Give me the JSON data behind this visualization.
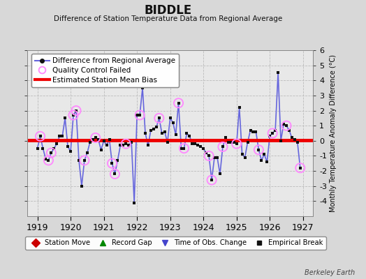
{
  "title": "BIDDLE",
  "subtitle": "Difference of Station Temperature Data from Regional Average",
  "ylabel_right": "Monthly Temperature Anomaly Difference (°C)",
  "credit": "Berkeley Earth",
  "ylim": [
    -5,
    6
  ],
  "yticks": [
    -4,
    -3,
    -2,
    -1,
    0,
    1,
    2,
    3,
    4,
    5,
    6
  ],
  "bias": 0.05,
  "x_start_year": 1919,
  "x_end_year": 1927,
  "background_color": "#d8d8d8",
  "plot_bg_color": "#e8e8e8",
  "line_color": "#6666dd",
  "marker_color": "#111111",
  "bias_color": "#ee0000",
  "qc_color": "#ff88ff",
  "data": [
    -0.5,
    0.3,
    -0.5,
    -1.2,
    -1.3,
    -0.8,
    -0.5,
    -0.2,
    0.3,
    0.3,
    1.5,
    -0.4,
    -0.7,
    1.7,
    2.0,
    -1.3,
    -3.0,
    -1.3,
    -0.8,
    -0.1,
    0.1,
    0.2,
    0.1,
    -0.6,
    -0.0,
    -0.3,
    0.1,
    -1.5,
    -2.2,
    -1.3,
    -0.3,
    -0.3,
    -0.2,
    -0.3,
    -0.1,
    -4.1,
    1.7,
    1.7,
    3.5,
    0.5,
    -0.3,
    0.7,
    0.8,
    0.9,
    1.5,
    0.5,
    0.6,
    -0.1,
    1.5,
    1.2,
    0.4,
    2.5,
    -0.5,
    -0.5,
    0.5,
    0.3,
    -0.2,
    -0.2,
    -0.3,
    -0.4,
    -0.5,
    -0.8,
    -1.0,
    -2.6,
    -1.1,
    -1.1,
    -2.2,
    -0.4,
    0.2,
    -0.1,
    -0.1,
    -0.1,
    -0.2,
    2.2,
    -0.9,
    -1.1,
    -0.1,
    0.7,
    0.6,
    0.6,
    -0.6,
    -1.3,
    -0.9,
    -1.4,
    0.3,
    0.5,
    0.7,
    4.5,
    0.0,
    1.1,
    1.0,
    0.7,
    0.2,
    0.1,
    -0.1,
    -1.8
  ],
  "qc_indices": [
    1,
    4,
    5,
    13,
    14,
    17,
    21,
    27,
    28,
    32,
    37,
    44,
    51,
    53,
    62,
    63,
    67,
    72,
    80,
    85,
    90,
    95
  ],
  "legend_top_entries": [
    "Difference from Regional Average",
    "Quality Control Failed",
    "Estimated Station Mean Bias"
  ],
  "legend_bottom_entries": [
    {
      "label": "Station Move",
      "color": "#cc0000",
      "marker": "D",
      "markersize": 6
    },
    {
      "label": "Record Gap",
      "color": "#008800",
      "marker": "^",
      "markersize": 6
    },
    {
      "label": "Time of Obs. Change",
      "color": "#4444cc",
      "marker": "v",
      "markersize": 6
    },
    {
      "label": "Empirical Break",
      "color": "#111111",
      "marker": "s",
      "markersize": 5
    }
  ]
}
